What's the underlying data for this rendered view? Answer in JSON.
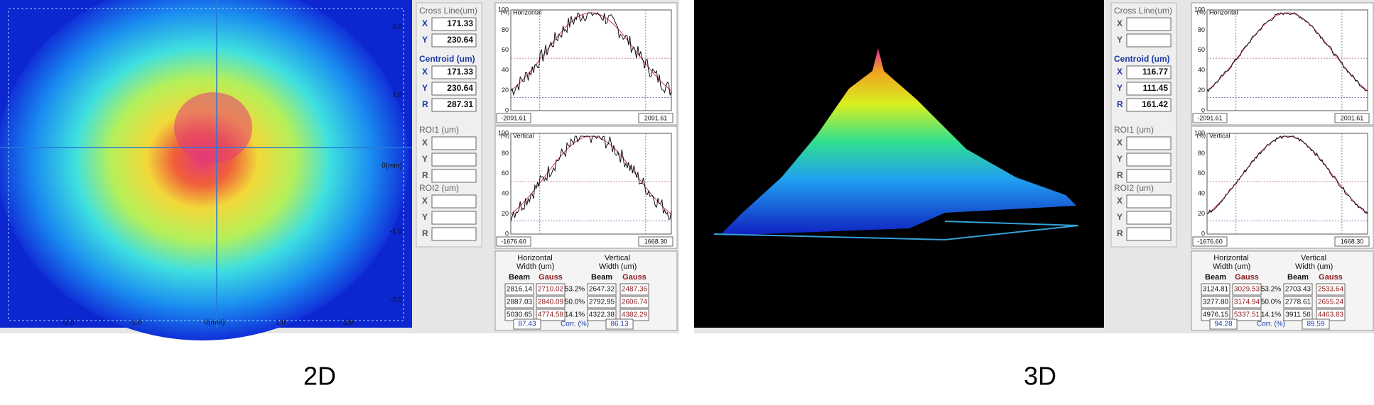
{
  "captions": [
    "2D",
    "3D"
  ],
  "views": [
    {
      "image_axis": {
        "right_labels": [
          "2.0",
          "1.0",
          "0(mm)",
          "-1.0",
          "-2.0"
        ],
        "bottom_labels": [
          "-2.0",
          "-1.0",
          "0(mm)",
          "1.0",
          "2.0"
        ]
      },
      "cross_line": {
        "title": "Cross Line(um)",
        "labels": [
          "X",
          "Y"
        ],
        "values": [
          "171.33",
          "230.64"
        ]
      },
      "centroid": {
        "title": "Centroid (um)",
        "labels": [
          "X",
          "Y",
          "R"
        ],
        "values": [
          "171.33",
          "230.64",
          "287.31"
        ]
      },
      "roi1": {
        "title": "ROI1 (um)",
        "labels": [
          "X",
          "Y",
          "R"
        ]
      },
      "roi2": {
        "title": "ROI2 (um)",
        "labels": [
          "X",
          "Y",
          "R"
        ]
      },
      "plots": [
        {
          "title": "Horizontal",
          "unit": "(%)",
          "y_labels": [
            "100",
            "80",
            "60",
            "40",
            "20",
            "0"
          ],
          "min_label": "-2091.61",
          "max_label": "2091.61"
        },
        {
          "title": "Vertical",
          "unit": "(%)",
          "y_labels": [
            "100",
            "80",
            "60",
            "40",
            "20",
            "0"
          ],
          "min_label": "-1676.60",
          "max_label": "1668.30"
        }
      ],
      "table": {
        "h_header": "Horizontal",
        "v_header": "Vertical",
        "width_label": "Width",
        "unit": "(um)",
        "beam": "Beam",
        "gauss": "Gauss",
        "rows": [
          [
            "2816.14",
            "2710.02",
            "53.2%",
            "2647.32",
            "2487.36"
          ],
          [
            "2887.03",
            "2840.09",
            "50.0%",
            "2792.95",
            "2606.74"
          ],
          [
            "5030.65",
            "4774.58",
            "14.1%",
            "4322.38",
            "4382.29"
          ]
        ],
        "corr_h": "87.43",
        "corr_label": "Corr. (%)",
        "corr_v": "86.13"
      }
    },
    {
      "cross_line": {
        "title": "Cross Line(um)",
        "labels": [
          "X",
          "Y"
        ]
      },
      "centroid": {
        "title": "Centroid (um)",
        "labels": [
          "X",
          "Y",
          "R"
        ],
        "values": [
          "116.77",
          "111.45",
          "161.42"
        ]
      },
      "roi1": {
        "title": "ROI1 (um)",
        "labels": [
          "X",
          "Y",
          "R"
        ]
      },
      "roi2": {
        "title": "ROI2 (um)",
        "labels": [
          "X",
          "Y",
          "R"
        ]
      },
      "plots": [
        {
          "title": "Horizontal",
          "unit": "(%)",
          "y_labels": [
            "100",
            "80",
            "60",
            "40",
            "20",
            "0"
          ],
          "min_label": "-2091.61",
          "max_label": "2091.61"
        },
        {
          "title": "Vertical",
          "unit": "(%)",
          "y_labels": [
            "100",
            "80",
            "60",
            "40",
            "20",
            "0"
          ],
          "min_label": "-1676.60",
          "max_label": "1668.30"
        }
      ],
      "table": {
        "h_header": "Horizontal",
        "v_header": "Vertical",
        "width_label": "Width",
        "unit": "(um)",
        "beam": "Beam",
        "gauss": "Gauss",
        "rows": [
          [
            "3124.81",
            "3029.53",
            "53.2%",
            "2703.43",
            "2533.64"
          ],
          [
            "3277.80",
            "3174.94",
            "50.0%",
            "2778.61",
            "2655.24"
          ],
          [
            "4976.15",
            "5337.51",
            "14.1%",
            "3911.56",
            "4463.83"
          ]
        ],
        "corr_h": "94.28",
        "corr_label": "Corr. (%)",
        "corr_v": "89.59"
      }
    }
  ]
}
